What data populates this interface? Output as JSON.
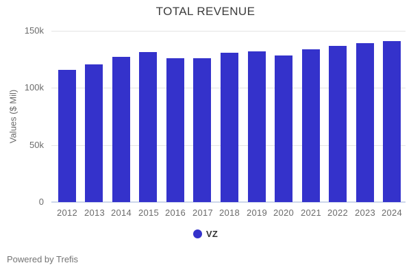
{
  "title": "TOTAL REVENUE",
  "y_axis": {
    "label": "Values ($ Mil)"
  },
  "legend": {
    "series_label": "VZ"
  },
  "footer": "Powered by Trefis",
  "colors": {
    "bar": "#3432cb",
    "grid": "#e4e4e4",
    "baseline": "#ccd6eb",
    "title_text": "#3c3c3c",
    "axis_text": "#6b6b6b",
    "legend_text": "#333333",
    "footer_text": "#737373"
  },
  "chart_data": {
    "type": "bar",
    "title": "TOTAL REVENUE",
    "xlabel": "",
    "ylabel": "Values ($ Mil)",
    "categories": [
      "2012",
      "2013",
      "2014",
      "2015",
      "2016",
      "2017",
      "2018",
      "2019",
      "2020",
      "2021",
      "2022",
      "2023",
      "2024"
    ],
    "series": [
      {
        "name": "VZ",
        "values": [
          115846,
          120550,
          127079,
          131620,
          125980,
          126034,
          130863,
          131868,
          128292,
          133613,
          136835,
          139000,
          141000
        ]
      }
    ],
    "ylim": [
      0,
      150000
    ],
    "yticks": [
      0,
      50000,
      100000,
      150000
    ],
    "ytick_labels": [
      "0",
      "50k",
      "100k",
      "150k"
    ],
    "grid": true,
    "legend_position": "bottom-center"
  }
}
